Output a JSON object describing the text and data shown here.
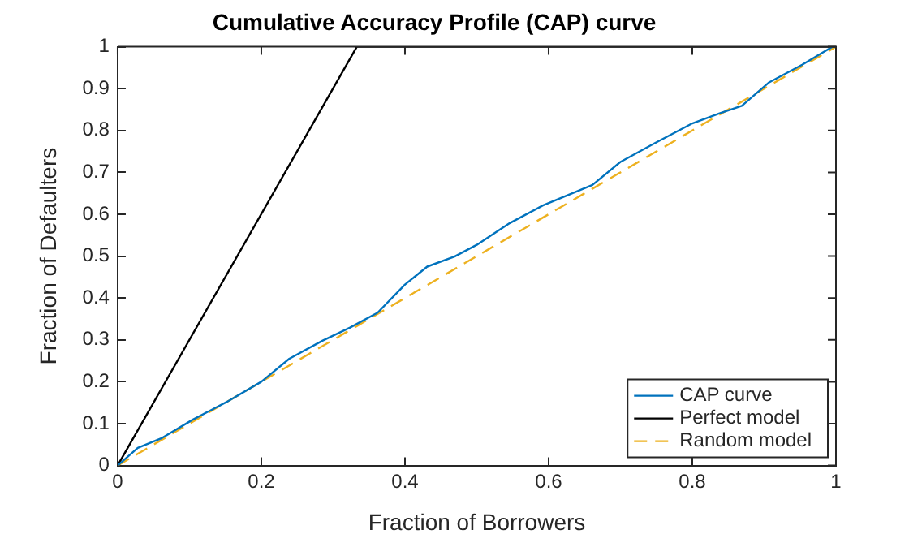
{
  "chart_data": {
    "type": "line",
    "title": "Cumulative Accuracy Profile (CAP) curve",
    "xlabel": "Fraction of Borrowers",
    "ylabel": "Fraction of Defaulters",
    "xlim": [
      0,
      1
    ],
    "ylim": [
      0,
      1
    ],
    "xticks": [
      0,
      0.2,
      0.4,
      0.6,
      0.8,
      1
    ],
    "yticks": [
      0,
      0.1,
      0.2,
      0.3,
      0.4,
      0.5,
      0.6,
      0.7,
      0.8,
      0.9,
      1
    ],
    "grid": false,
    "legend": "bottom right",
    "marker": "none",
    "series": [
      {
        "name": "CAP curve",
        "color": "#0072bd",
        "line_style": "solid",
        "x": [
          0,
          0.028,
          0.062,
          0.104,
          0.151,
          0.2,
          0.239,
          0.285,
          0.323,
          0.362,
          0.4,
          0.431,
          0.469,
          0.5,
          0.546,
          0.592,
          0.661,
          0.7,
          0.746,
          0.8,
          0.838,
          0.869,
          0.907,
          0.953,
          0.995,
          1
        ],
        "values": [
          0,
          0.042,
          0.066,
          0.109,
          0.151,
          0.2,
          0.255,
          0.298,
          0.329,
          0.365,
          0.432,
          0.475,
          0.499,
          0.527,
          0.579,
          0.621,
          0.67,
          0.725,
          0.768,
          0.817,
          0.841,
          0.859,
          0.915,
          0.957,
          1,
          1
        ]
      },
      {
        "name": "Perfect model",
        "color": "#000000",
        "line_style": "solid",
        "x": [
          0,
          0.333,
          1
        ],
        "values": [
          0,
          1,
          1
        ]
      },
      {
        "name": "Random model",
        "color": "#edb120",
        "line_style": "dashed",
        "x": [
          0,
          1
        ],
        "values": [
          0,
          1
        ]
      }
    ]
  }
}
